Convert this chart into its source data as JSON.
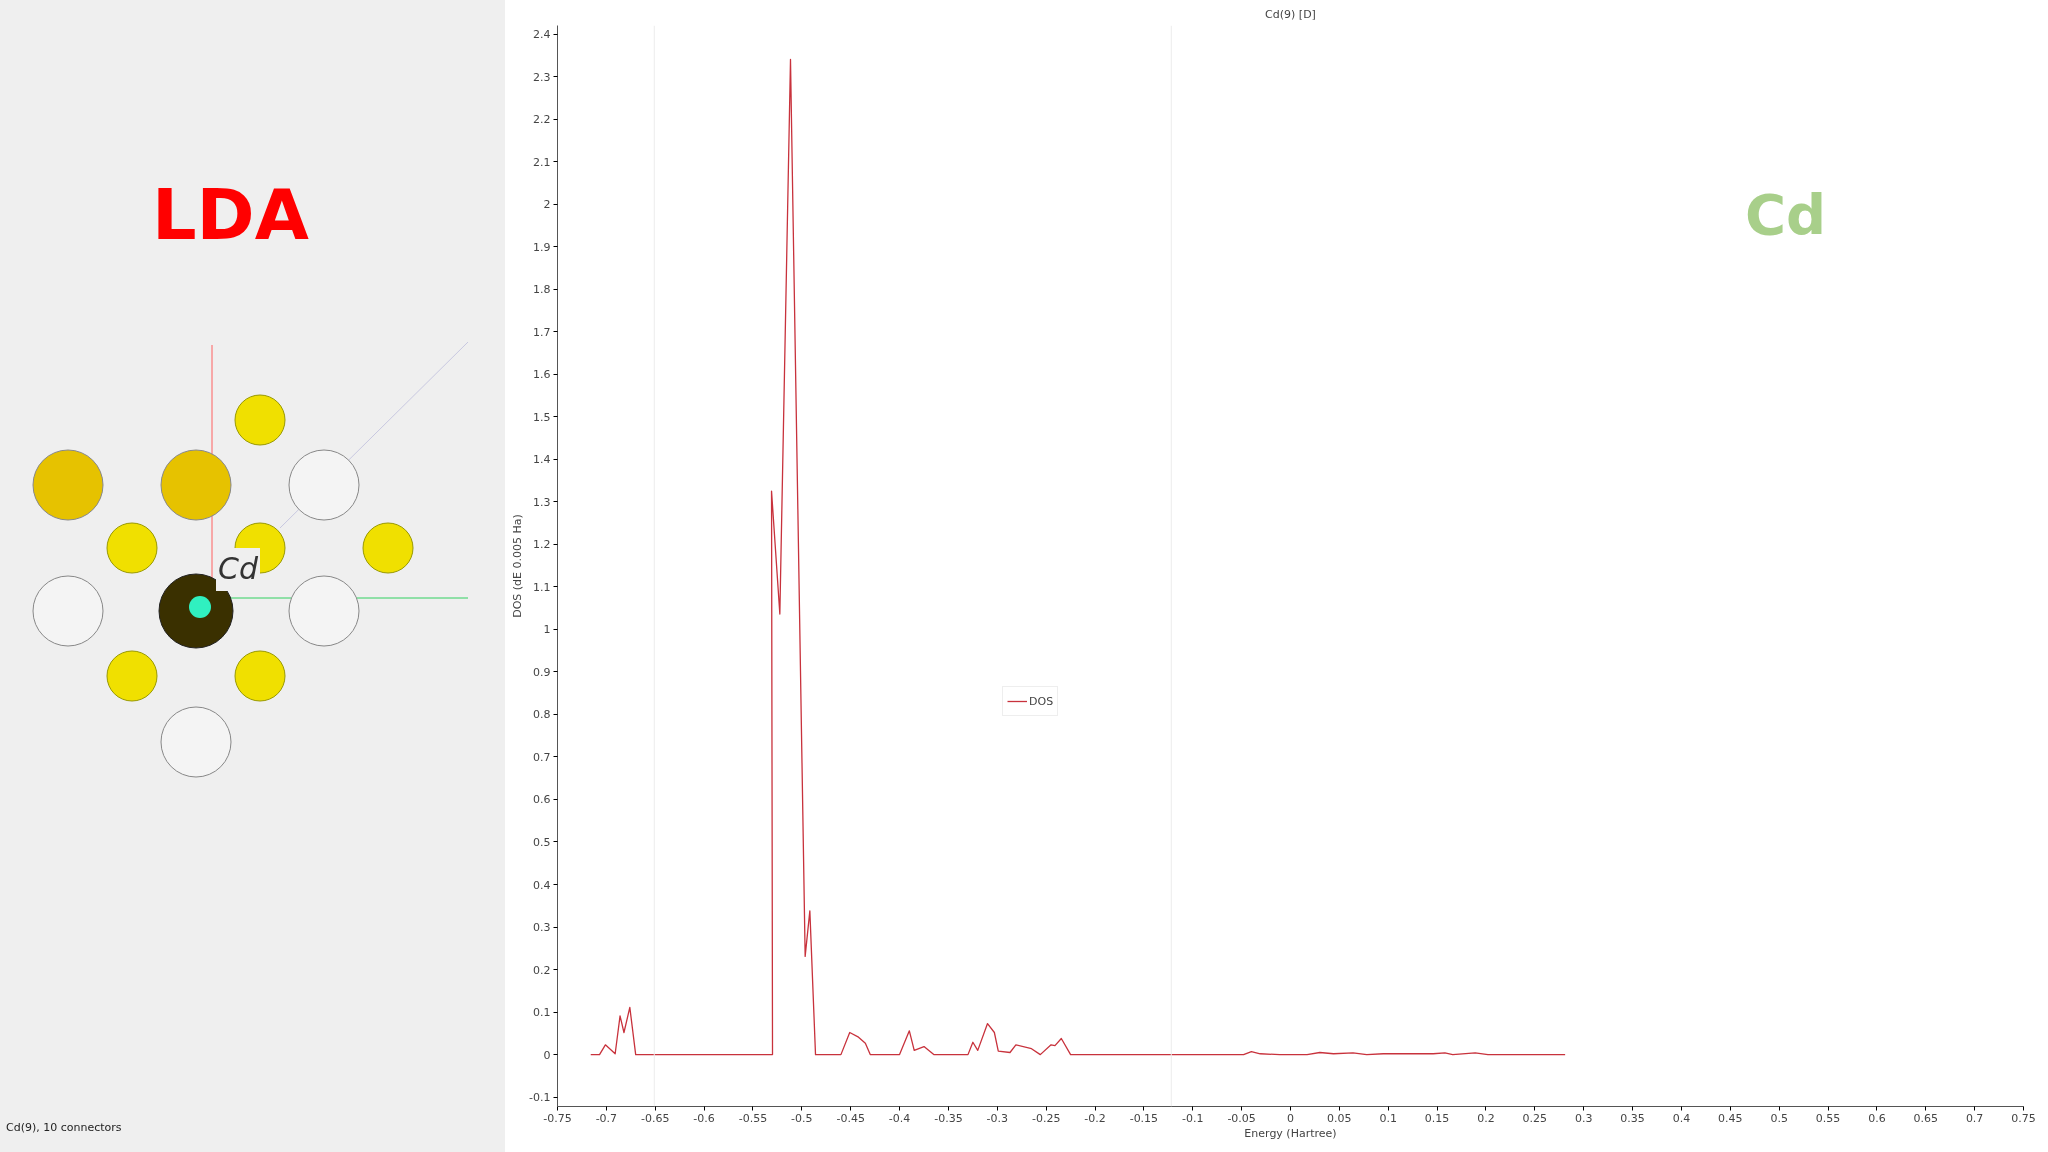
{
  "chart_data": {
    "type": "line",
    "title": "Cd(9) [D]",
    "xlabel": "Energy (Hartree)",
    "ylabel": "DOS (dE 0.005 Ha)",
    "annotations": [
      "LDA",
      "Cd",
      "Cd(9), 10 connectors",
      "Cd"
    ],
    "x": [
      -0.716,
      -0.707,
      -0.701,
      -0.691,
      -0.686,
      -0.682,
      -0.676,
      -0.67,
      -0.53,
      -0.531,
      -0.5225,
      -0.5116,
      -0.4966,
      -0.4918,
      -0.486,
      -0.46,
      -0.451,
      -0.442,
      -0.435,
      -0.43,
      -0.4,
      -0.39,
      -0.385,
      -0.375,
      -0.365,
      -0.33,
      -0.325,
      -0.32,
      -0.31,
      -0.303,
      -0.299,
      -0.287,
      -0.281,
      -0.265,
      -0.256,
      -0.245,
      -0.241,
      -0.2345,
      -0.225,
      -0.048,
      -0.04,
      -0.031,
      -0.011,
      0.017,
      0.03,
      0.044,
      0.064,
      0.078,
      0.095,
      0.146,
      0.158,
      0.166,
      0.189,
      0.202,
      0.281
    ],
    "series": [
      {
        "name": "DOS",
        "color": "#c8323c",
        "values": [
          0,
          0,
          0.023,
          0.002,
          0.091,
          0.052,
          0.111,
          0,
          0,
          1.325,
          1.036,
          2.34,
          0.231,
          0.338,
          0,
          0,
          0.052,
          0.041,
          0.027,
          0,
          0,
          0.056,
          0.01,
          0.019,
          0,
          0,
          0.029,
          0.01,
          0.073,
          0.052,
          0.008,
          0.005,
          0.023,
          0.014,
          0,
          0.023,
          0.021,
          0.038,
          0,
          0,
          0.007,
          0.002,
          0,
          0,
          0.005,
          0.002,
          0.004,
          0,
          0.002,
          0.002,
          0.004,
          0,
          0.004,
          0,
          0
        ]
      }
    ],
    "xlim": [
      -0.75,
      0.75
    ],
    "ylim": [
      -0.122,
      2.42
    ],
    "xticks": [
      -0.75,
      -0.7,
      -0.65,
      -0.6,
      -0.55,
      -0.5,
      -0.45,
      -0.4,
      -0.35,
      -0.3,
      -0.25,
      -0.2,
      -0.15,
      -0.1,
      -0.05,
      0,
      0.05,
      0.1,
      0.15,
      0.2,
      0.25,
      0.3,
      0.35,
      0.4,
      0.45,
      0.5,
      0.55,
      0.6,
      0.65,
      0.7,
      0.75
    ],
    "yticks": [
      -0.1,
      0,
      0.1,
      0.2,
      0.3,
      0.4,
      0.5,
      0.6,
      0.7,
      0.8,
      0.9,
      1,
      1.1,
      1.2,
      1.3,
      1.4,
      1.5,
      1.6,
      1.7,
      1.8,
      1.9,
      2,
      2.1,
      2.2,
      2.3,
      2.4
    ],
    "ref_lines": [
      {
        "axis": "x",
        "value": -0.651,
        "label": null,
        "color": "#ececec"
      },
      {
        "axis": "x",
        "value": -0.122,
        "label": null,
        "color": "#ececec"
      }
    ],
    "legend": "center",
    "grid": false,
    "marker": "none",
    "line_style": "solid"
  }
}
